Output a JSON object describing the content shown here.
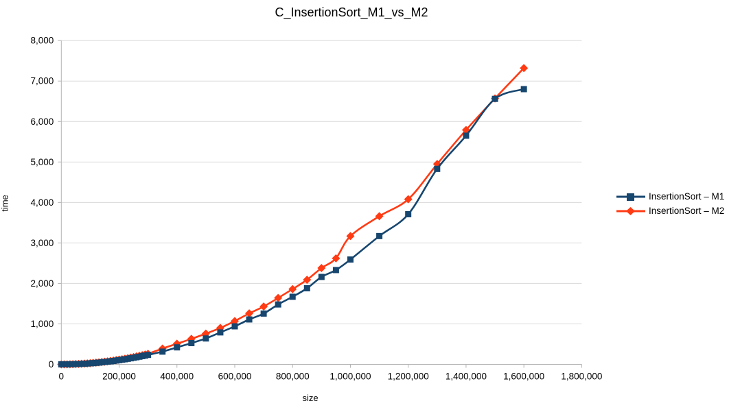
{
  "chart_data": {
    "type": "line",
    "title": "C_InsertionSort_M1_vs_M2",
    "xlabel": "size",
    "ylabel": "time",
    "xlim": [
      0,
      1800000
    ],
    "ylim": [
      0,
      8000
    ],
    "x_ticks": [
      0,
      200000,
      400000,
      600000,
      800000,
      1000000,
      1200000,
      1400000,
      1600000,
      1800000
    ],
    "y_ticks": [
      0,
      1000,
      2000,
      3000,
      4000,
      5000,
      6000,
      7000,
      8000
    ],
    "grid": "horizontal",
    "smooth_lines": true,
    "legend_position": "right",
    "colors": {
      "background": "#ffffff",
      "grid": "#d9d9d9",
      "axis": "#b3b3b3",
      "text": "#000000"
    },
    "series": [
      {
        "name": "InsertionSort – M1",
        "color": "#17466f",
        "marker": "square",
        "points": [
          [
            0,
            0
          ],
          [
            10000,
            0
          ],
          [
            20000,
            1
          ],
          [
            30000,
            2
          ],
          [
            40000,
            4
          ],
          [
            50000,
            7
          ],
          [
            60000,
            9
          ],
          [
            70000,
            13
          ],
          [
            80000,
            17
          ],
          [
            90000,
            21
          ],
          [
            100000,
            26
          ],
          [
            110000,
            31
          ],
          [
            120000,
            37
          ],
          [
            130000,
            44
          ],
          [
            140000,
            51
          ],
          [
            150000,
            59
          ],
          [
            160000,
            67
          ],
          [
            170000,
            75
          ],
          [
            180000,
            84
          ],
          [
            190000,
            94
          ],
          [
            200000,
            104
          ],
          [
            210000,
            115
          ],
          [
            220000,
            126
          ],
          [
            230000,
            138
          ],
          [
            240000,
            150
          ],
          [
            250000,
            163
          ],
          [
            260000,
            176
          ],
          [
            270000,
            190
          ],
          [
            280000,
            204
          ],
          [
            290000,
            218
          ],
          [
            300000,
            234
          ],
          [
            350000,
            315
          ],
          [
            400000,
            420
          ],
          [
            450000,
            525
          ],
          [
            500000,
            640
          ],
          [
            550000,
            790
          ],
          [
            600000,
            940
          ],
          [
            650000,
            1110
          ],
          [
            700000,
            1255
          ],
          [
            750000,
            1480
          ],
          [
            800000,
            1670
          ],
          [
            850000,
            1880
          ],
          [
            900000,
            2160
          ],
          [
            950000,
            2330
          ],
          [
            1000000,
            2590
          ],
          [
            1100000,
            3170
          ],
          [
            1200000,
            3710
          ],
          [
            1300000,
            4830
          ],
          [
            1400000,
            5650
          ],
          [
            1500000,
            6560
          ],
          [
            1600000,
            6800
          ]
        ]
      },
      {
        "name": "InsertionSort – M2",
        "color": "#ff3b14",
        "marker": "diamond",
        "points": [
          [
            0,
            0
          ],
          [
            10000,
            0
          ],
          [
            20000,
            1
          ],
          [
            30000,
            3
          ],
          [
            40000,
            5
          ],
          [
            50000,
            8
          ],
          [
            60000,
            10
          ],
          [
            70000,
            14
          ],
          [
            80000,
            19
          ],
          [
            90000,
            24
          ],
          [
            100000,
            29
          ],
          [
            110000,
            35
          ],
          [
            120000,
            42
          ],
          [
            130000,
            49
          ],
          [
            140000,
            57
          ],
          [
            150000,
            65
          ],
          [
            160000,
            74
          ],
          [
            170000,
            84
          ],
          [
            180000,
            94
          ],
          [
            190000,
            105
          ],
          [
            200000,
            116
          ],
          [
            210000,
            128
          ],
          [
            220000,
            140
          ],
          [
            230000,
            153
          ],
          [
            240000,
            167
          ],
          [
            250000,
            181
          ],
          [
            260000,
            196
          ],
          [
            270000,
            211
          ],
          [
            280000,
            227
          ],
          [
            290000,
            244
          ],
          [
            300000,
            261
          ],
          [
            350000,
            390
          ],
          [
            400000,
            510
          ],
          [
            450000,
            630
          ],
          [
            500000,
            760
          ],
          [
            550000,
            900
          ],
          [
            600000,
            1070
          ],
          [
            650000,
            1260
          ],
          [
            700000,
            1430
          ],
          [
            750000,
            1640
          ],
          [
            800000,
            1860
          ],
          [
            850000,
            2090
          ],
          [
            900000,
            2380
          ],
          [
            950000,
            2620
          ],
          [
            1000000,
            3170
          ],
          [
            1100000,
            3660
          ],
          [
            1200000,
            4080
          ],
          [
            1300000,
            4950
          ],
          [
            1400000,
            5790
          ],
          [
            1500000,
            6570
          ],
          [
            1600000,
            7320
          ]
        ]
      }
    ]
  }
}
